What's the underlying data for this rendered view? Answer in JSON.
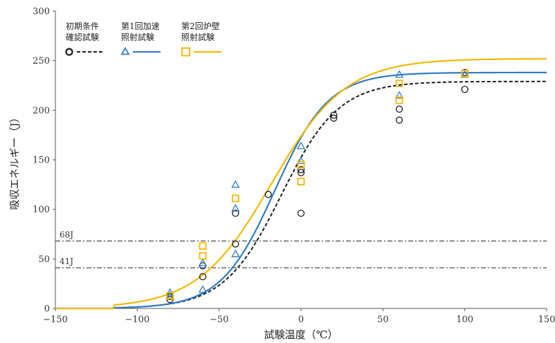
{
  "chart_data": {
    "type": "scatter",
    "title": "",
    "xlabel": "試験温度（℃）",
    "ylabel": "吸収エネルギー（J）",
    "xlim": [
      -150,
      150
    ],
    "ylim": [
      0,
      300
    ],
    "x_ticks": [
      -150,
      -100,
      -50,
      0,
      50,
      100,
      150
    ],
    "y_ticks": [
      0,
      50,
      100,
      150,
      200,
      250,
      300
    ],
    "x_tick_labels": [
      "−150",
      "−100",
      "−50",
      "0",
      "50",
      "100",
      "150"
    ],
    "y_tick_labels": [
      "0",
      "50",
      "100",
      "150",
      "200",
      "250",
      "300"
    ],
    "grid": false,
    "legend_position": "top-left",
    "reference_lines": [
      {
        "label": "68J",
        "y": 68
      },
      {
        "label": "41J",
        "y": 41
      }
    ],
    "series": [
      {
        "name_line1": "初期条件",
        "name_line2": "確認試験",
        "marker": "circle",
        "color": "#1a1a1a",
        "curve_style": "dashed",
        "points": [
          {
            "x": -80,
            "y": 9
          },
          {
            "x": -80,
            "y": 12
          },
          {
            "x": -60,
            "y": 32
          },
          {
            "x": -60,
            "y": 43
          },
          {
            "x": -40,
            "y": 65
          },
          {
            "x": -40,
            "y": 96
          },
          {
            "x": -20,
            "y": 115
          },
          {
            "x": 0,
            "y": 96
          },
          {
            "x": 0,
            "y": 137
          },
          {
            "x": 0,
            "y": 140
          },
          {
            "x": 20,
            "y": 192
          },
          {
            "x": 20,
            "y": 195
          },
          {
            "x": 60,
            "y": 190
          },
          {
            "x": 60,
            "y": 201
          },
          {
            "x": 100,
            "y": 221
          },
          {
            "x": 100,
            "y": 238
          }
        ],
        "fit": {
          "lower": 0,
          "upper": 229,
          "t0": -12,
          "c": 35,
          "tmin": -115
        }
      },
      {
        "name_line1": "第1回加速",
        "name_line2": "照射試験",
        "marker": "triangle",
        "color": "#2e7bc4",
        "curve_style": "solid",
        "points": [
          {
            "x": -80,
            "y": 13
          },
          {
            "x": -80,
            "y": 16
          },
          {
            "x": -60,
            "y": 19
          },
          {
            "x": -60,
            "y": 46
          },
          {
            "x": -40,
            "y": 55
          },
          {
            "x": -40,
            "y": 101
          },
          {
            "x": -40,
            "y": 125
          },
          {
            "x": 0,
            "y": 149
          },
          {
            "x": 0,
            "y": 164
          },
          {
            "x": 60,
            "y": 215
          },
          {
            "x": 60,
            "y": 236
          },
          {
            "x": 100,
            "y": 236
          }
        ],
        "fit": {
          "lower": 0,
          "upper": 238,
          "t0": -16,
          "c": 33,
          "tmin": -115
        }
      },
      {
        "name_line1": "第2回炉壁",
        "name_line2": "照射試験",
        "marker": "square",
        "color": "#f5b800",
        "curve_style": "solid",
        "points": [
          {
            "x": -80,
            "y": 13
          },
          {
            "x": -60,
            "y": 53
          },
          {
            "x": -60,
            "y": 63
          },
          {
            "x": -40,
            "y": 111
          },
          {
            "x": 0,
            "y": 128
          },
          {
            "x": 0,
            "y": 145
          },
          {
            "x": 60,
            "y": 210
          },
          {
            "x": 60,
            "y": 227
          },
          {
            "x": 100,
            "y": 237
          }
        ],
        "fit": {
          "lower": 0,
          "upper": 252,
          "t0": -18,
          "c": 45,
          "tmin": -115
        }
      }
    ]
  }
}
